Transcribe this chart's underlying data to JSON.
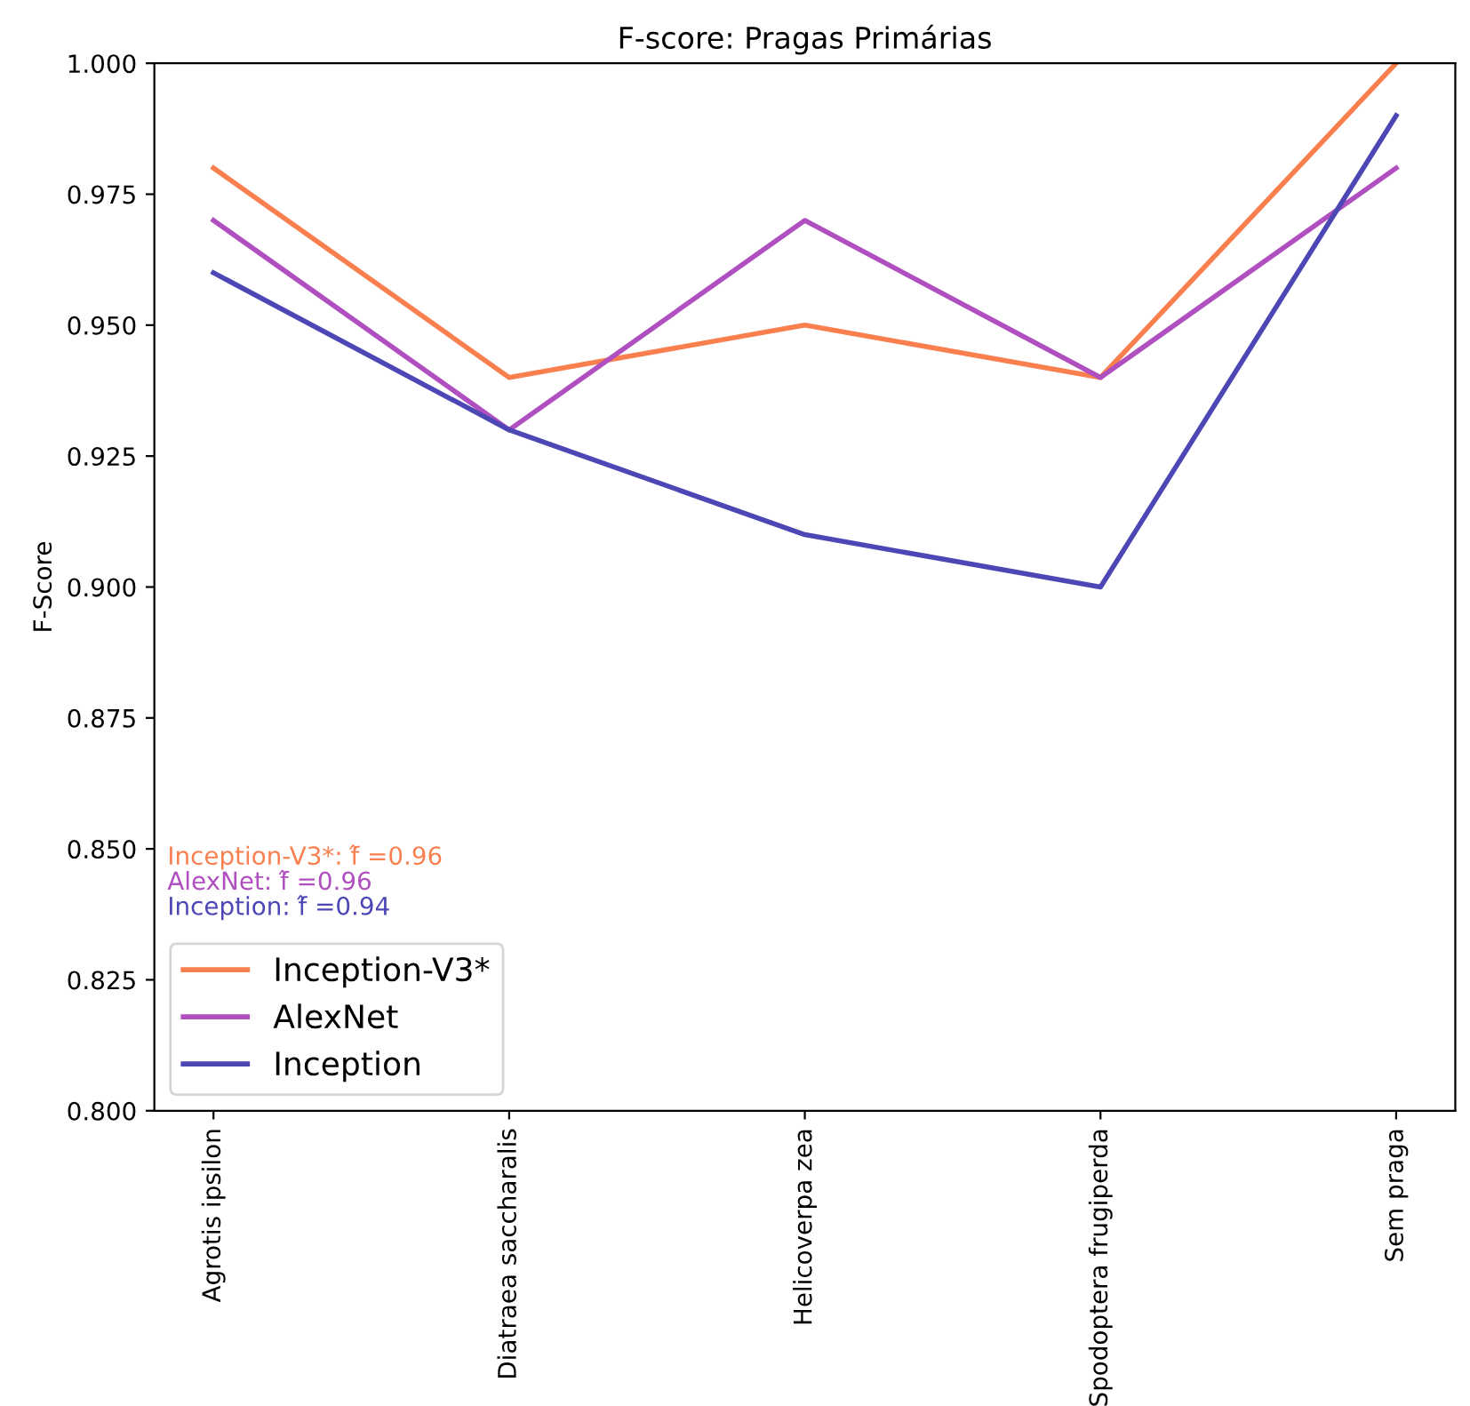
{
  "chart_data": {
    "type": "line",
    "title": "F-score: Pragas Primárias",
    "ylabel": "F-Score",
    "categories": [
      "Agrotis ipsilon",
      "Diatraea saccharalis",
      "Helicoverpa zea",
      "Spodoptera frugiperda",
      "Sem praga"
    ],
    "series": [
      {
        "name": "Inception-V3*",
        "color": "#fa7f4e",
        "values": [
          0.98,
          0.94,
          0.95,
          0.94,
          1.0
        ]
      },
      {
        "name": "AlexNet",
        "color": "#b04fbf",
        "values": [
          0.97,
          0.93,
          0.97,
          0.94,
          0.98
        ]
      },
      {
        "name": "Inception",
        "color": "#4c47b5",
        "values": [
          0.96,
          0.93,
          0.91,
          0.9,
          0.99
        ]
      }
    ],
    "ylim": [
      0.8,
      1.0
    ],
    "yticks": [
      {
        "value": 0.8,
        "label": "0.800"
      },
      {
        "value": 0.825,
        "label": "0.825"
      },
      {
        "value": 0.85,
        "label": "0.850"
      },
      {
        "value": 0.875,
        "label": "0.875"
      },
      {
        "value": 0.9,
        "label": "0.900"
      },
      {
        "value": 0.925,
        "label": "0.925"
      },
      {
        "value": 0.95,
        "label": "0.950"
      },
      {
        "value": 0.975,
        "label": "0.975"
      },
      {
        "value": 1.0,
        "label": "1.000"
      }
    ],
    "annotations": [
      "Inception-V3*: f̂ =0.96",
      "AlexNet: f̂ =0.96",
      "Inception: f̂ =0.94"
    ],
    "legend": "bottom left",
    "grid": false,
    "marker": "none",
    "line_style": "solid"
  }
}
